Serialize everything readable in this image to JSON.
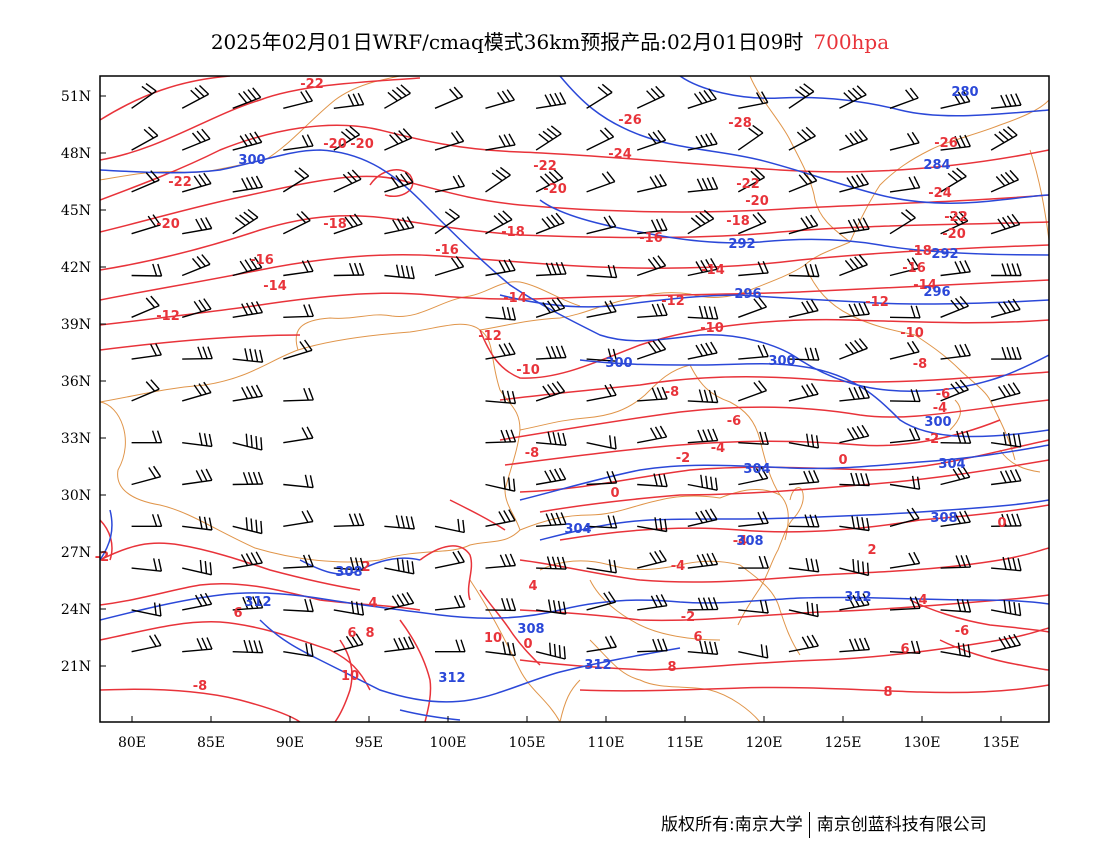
{
  "title": {
    "main": "2025年02月01日WRF/cmaq模式36km预报产品:02月01日09时",
    "level": "700hpa"
  },
  "copyright": {
    "owner": "版权所有:南京大学",
    "partner": "南京创蓝科技有限公司"
  },
  "colors": {
    "temperature": "#e8333a",
    "height": "#2b48d8",
    "border": "#e0954a",
    "wind": "#000000"
  },
  "axes": {
    "lat_labels": [
      "51N",
      "48N",
      "45N",
      "42N",
      "39N",
      "36N",
      "33N",
      "30N",
      "27N",
      "24N",
      "21N"
    ],
    "lon_labels": [
      "80E",
      "85E",
      "90E",
      "95E",
      "100E",
      "105E",
      "110E",
      "115E",
      "120E",
      "125E",
      "130E",
      "135E"
    ]
  },
  "temperature_labels": [
    "-22",
    "-20",
    "-22",
    "-20",
    "-18",
    "-16",
    "-14",
    "-12",
    "-26",
    "-28",
    "-24",
    "-22",
    "-20",
    "-18",
    "-16",
    "-14",
    "-12",
    "-10",
    "-8",
    "-6",
    "-4",
    "-2",
    "0",
    "-22",
    "-20",
    "-26",
    "-24",
    "-22",
    "-20",
    "-18",
    "-16",
    "-14",
    "-12",
    "-10",
    "-8",
    "-6",
    "-4",
    "-2",
    "0",
    "2",
    "4",
    "6",
    "8",
    "10",
    "-10",
    "-12",
    "-14",
    "-16",
    "-18",
    "-20",
    "-8",
    "-6",
    "-4",
    "-2",
    "0",
    "4",
    "6",
    "-4",
    "-2",
    "2",
    "4",
    "6",
    "8",
    "10",
    "0",
    "6",
    "8",
    "-8"
  ],
  "height_labels": [
    "300",
    "280",
    "284",
    "292",
    "292",
    "296",
    "296",
    "300",
    "300",
    "300",
    "304",
    "304",
    "304",
    "308",
    "308",
    "308",
    "308",
    "312",
    "312",
    "312",
    "312"
  ]
}
